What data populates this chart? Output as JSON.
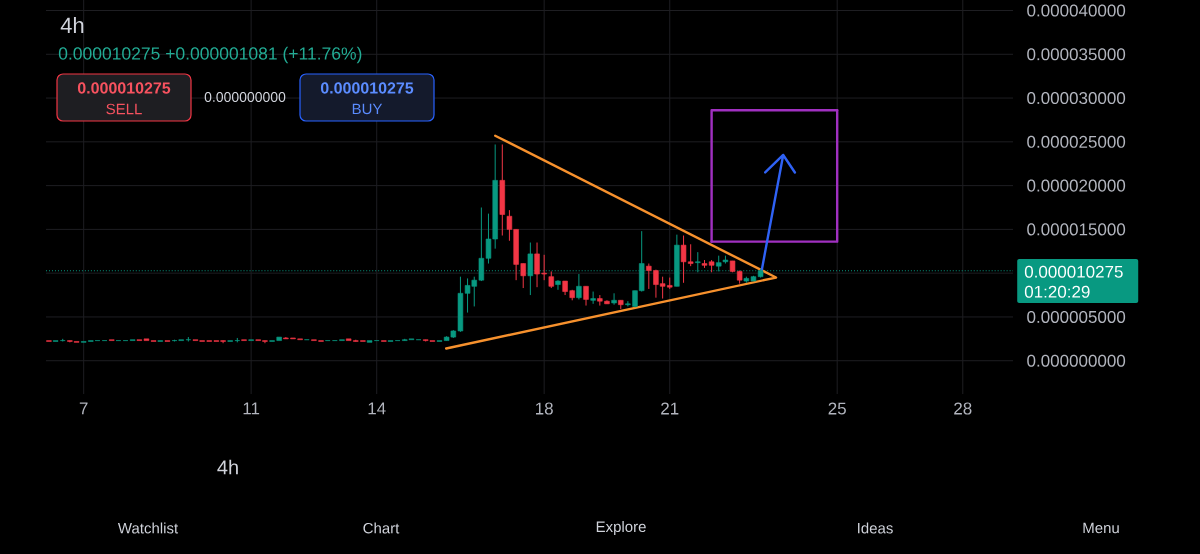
{
  "chart_data": {
    "type": "candlestick",
    "title": "4h",
    "subtitle": "0.000010275 +0.000001081 (+11.76%)",
    "x": [
      6.17,
      6.33,
      6.5,
      6.67,
      6.83,
      7,
      7.17,
      7.33,
      7.5,
      7.67,
      7.83,
      8,
      8.17,
      8.33,
      8.5,
      8.67,
      8.83,
      9,
      9.17,
      9.33,
      9.5,
      9.67,
      9.83,
      10,
      10.17,
      10.33,
      10.5,
      10.67,
      10.83,
      11,
      11.17,
      11.33,
      11.5,
      11.67,
      11.83,
      12,
      12.17,
      12.33,
      12.5,
      12.67,
      12.83,
      13,
      13.17,
      13.33,
      13.5,
      13.67,
      13.83,
      14,
      14.17,
      14.33,
      14.5,
      14.67,
      14.83,
      15,
      15.17,
      15.33,
      15.5,
      15.67,
      15.83,
      16,
      16.17,
      16.33,
      16.5,
      16.67,
      16.83,
      17,
      17.17,
      17.33,
      17.5,
      17.67,
      17.83,
      18,
      18.17,
      18.33,
      18.5,
      18.67,
      18.83,
      19,
      19.17,
      19.33,
      19.5,
      19.67,
      19.83,
      20,
      20.17,
      20.33,
      20.5,
      20.67,
      20.83,
      21,
      21.17,
      21.33,
      21.5,
      21.67,
      21.83,
      22,
      22.17,
      22.33,
      22.5,
      22.67,
      22.83,
      23,
      23.17
    ],
    "ohlc": [
      [
        2.3e-06,
        2.3e-06,
        2.2e-06,
        2.2e-06
      ],
      [
        2.2e-06,
        2.3e-06,
        2.2e-06,
        2.3e-06
      ],
      [
        2.3e-06,
        2.5e-06,
        2.2e-06,
        2.3e-06
      ],
      [
        2.3e-06,
        2.3e-06,
        2.1e-06,
        2.2e-06
      ],
      [
        2.2e-06,
        2.2e-06,
        2.1e-06,
        2.1e-06
      ],
      [
        2.1e-06,
        2.2e-06,
        2.1e-06,
        2.2e-06
      ],
      [
        2.2e-06,
        2.3e-06,
        2.2e-06,
        2.3e-06
      ],
      [
        2.3e-06,
        2.3e-06,
        2.3e-06,
        2.3e-06
      ],
      [
        2.3e-06,
        2.3e-06,
        2.3e-06,
        2.3e-06
      ],
      [
        2.4e-06,
        2.4e-06,
        2.3e-06,
        2.3e-06
      ],
      [
        2.3e-06,
        2.3e-06,
        2.3e-06,
        2.3e-06
      ],
      [
        2.3e-06,
        2.3e-06,
        2.3e-06,
        2.3e-06
      ],
      [
        2.3e-06,
        2.4e-06,
        2.3e-06,
        2.4e-06
      ],
      [
        2.4e-06,
        2.4e-06,
        2.3e-06,
        2.3e-06
      ],
      [
        2.5e-06,
        2.5e-06,
        2.3e-06,
        2.3e-06
      ],
      [
        2.3e-06,
        2.3e-06,
        2.2e-06,
        2.2e-06
      ],
      [
        2.2e-06,
        2.3e-06,
        2.2e-06,
        2.3e-06
      ],
      [
        2.3e-06,
        2.3e-06,
        2.2e-06,
        2.2e-06
      ],
      [
        2.3e-06,
        2.4e-06,
        2.2e-06,
        2.3e-06
      ],
      [
        2.3e-06,
        2.4e-06,
        2.3e-06,
        2.4e-06
      ],
      [
        2.4e-06,
        2.7e-06,
        2.2e-06,
        2.4e-06
      ],
      [
        2.4e-06,
        2.4e-06,
        2.3e-06,
        2.3e-06
      ],
      [
        2.3e-06,
        2.3e-06,
        2.2e-06,
        2.2e-06
      ],
      [
        2.3e-06,
        2.3e-06,
        2.2e-06,
        2.2e-06
      ],
      [
        2.3e-06,
        2.3e-06,
        2.2e-06,
        2.2e-06
      ],
      [
        2.3e-06,
        2.3e-06,
        2e-06,
        2.2e-06
      ],
      [
        2.2e-06,
        2.3e-06,
        2.2e-06,
        2.3e-06
      ],
      [
        2.3e-06,
        2.6e-06,
        2.1e-06,
        2.3e-06
      ],
      [
        2.4e-06,
        2.4e-06,
        2.3e-06,
        2.3e-06
      ],
      [
        2.3e-06,
        2.4e-06,
        2.3e-06,
        2.4e-06
      ],
      [
        2.4e-06,
        2.4e-06,
        2.3e-06,
        2.3e-06
      ],
      [
        2.3e-06,
        2.3e-06,
        2e-06,
        2.2e-06
      ],
      [
        2.2e-06,
        2.3e-06,
        2.2e-06,
        2.3e-06
      ],
      [
        2.3e-06,
        2.7e-06,
        2.3e-06,
        2.7e-06
      ],
      [
        2.6e-06,
        2.7e-06,
        2.5e-06,
        2.5e-06
      ],
      [
        2.6e-06,
        2.6e-06,
        2.5e-06,
        2.5e-06
      ],
      [
        2.5e-06,
        2.5e-06,
        2.4e-06,
        2.4e-06
      ],
      [
        2.4e-06,
        2.4e-06,
        2.4e-06,
        2.4e-06
      ],
      [
        2.4e-06,
        2.4e-06,
        2.3e-06,
        2.3e-06
      ],
      [
        2.3e-06,
        2.3e-06,
        2.2e-06,
        2.2e-06
      ],
      [
        2.3e-06,
        2.3e-06,
        2.3e-06,
        2.3e-06
      ],
      [
        2.3e-06,
        2.3e-06,
        2.3e-06,
        2.3e-06
      ],
      [
        2.3e-06,
        2.4e-06,
        2.3e-06,
        2.4e-06
      ],
      [
        2.5e-06,
        2.5e-06,
        2.3e-06,
        2.3e-06
      ],
      [
        2.3e-06,
        2.4e-06,
        2.2e-06,
        2.2e-06
      ],
      [
        2.3e-06,
        2.3e-06,
        2.2e-06,
        2.2e-06
      ],
      [
        2.1e-06,
        2.3e-06,
        2.1e-06,
        2.3e-06
      ],
      [
        2.3e-06,
        2.3e-06,
        2.3e-06,
        2.3e-06
      ],
      [
        2.3e-06,
        2.3e-06,
        2.2e-06,
        2.2e-06
      ],
      [
        2.2e-06,
        2.3e-06,
        2.2e-06,
        2.3e-06
      ],
      [
        2.3e-06,
        2.3e-06,
        2.3e-06,
        2.3e-06
      ],
      [
        2.3e-06,
        2.5e-06,
        2.3e-06,
        2.4e-06
      ],
      [
        2.4e-06,
        2.5e-06,
        2.4e-06,
        2.5e-06
      ],
      [
        2.4e-06,
        2.4e-06,
        2.4e-06,
        2.4e-06
      ],
      [
        2.4e-06,
        2.4e-06,
        2.2e-06,
        2.3e-06
      ],
      [
        2.3e-06,
        2.3e-06,
        2.2e-06,
        2.2e-06
      ],
      [
        2.2e-06,
        2.3e-06,
        2.2e-06,
        2.3e-06
      ],
      [
        2.3e-06,
        2.8e-06,
        2.3e-06,
        2.7e-06
      ],
      [
        2.7e-06,
        3.5e-06,
        2.6e-06,
        3.4e-06
      ],
      [
        3.4e-06,
        9.6e-06,
        3.3e-06,
        7.7e-06
      ],
      [
        7.7e-06,
        9.4e-06,
        5.5e-06,
        8.6e-06
      ],
      [
        8.5e-06,
        9.6e-06,
        6.2e-06,
        9.2e-06
      ],
      [
        9.2e-06,
        1.75e-05,
        9.1e-06,
        1.17e-05
      ],
      [
        1.17e-05,
        1.68e-05,
        1.11e-05,
        1.39e-05
      ],
      [
        1.39e-05,
        2.47e-05,
        1.28e-05,
        2.06e-05
      ],
      [
        2.06e-05,
        2.47e-05,
        1.43e-05,
        1.67e-05
      ],
      [
        1.65e-05,
        1.72e-05,
        1.37e-05,
        1.5e-05
      ],
      [
        1.5e-05,
        1.5e-05,
        9.2e-06,
        1.1e-05
      ],
      [
        1.11e-05,
        1.11e-05,
        8.3e-06,
        9.7e-06
      ],
      [
        9.7e-06,
        1.35e-05,
        7.5e-06,
        1.22e-05
      ],
      [
        1.22e-05,
        1.35e-05,
        8.4e-06,
        9.9e-06
      ],
      [
        1e-05,
        1.21e-05,
        9.2e-06,
        9.9e-06
      ],
      [
        9.6e-06,
        1.02e-05,
        8.3e-06,
        8.5e-06
      ],
      [
        8.7e-06,
        9.2e-06,
        8.1e-06,
        9.1e-06
      ],
      [
        9.1e-06,
        9.1e-06,
        7.5e-06,
        7.9e-06
      ],
      [
        8e-06,
        8.1e-06,
        6.9e-06,
        7.2e-06
      ],
      [
        7.2e-06,
        9.9e-06,
        7e-06,
        8.5e-06
      ],
      [
        8.5e-06,
        8.5e-06,
        6.3e-06,
        7e-06
      ],
      [
        6.9e-06,
        7.9e-06,
        6.5e-06,
        7.1e-06
      ],
      [
        7.1e-06,
        7.5e-06,
        6.3e-06,
        6.8e-06
      ],
      [
        6.8e-06,
        6.9e-06,
        6.5e-06,
        6.5e-06
      ],
      [
        6.6e-06,
        7.7e-06,
        6.4e-06,
        6.9e-06
      ],
      [
        6.9e-06,
        6.9e-06,
        5.9e-06,
        6.4e-06
      ],
      [
        6.4e-06,
        6.8e-06,
        6.2e-06,
        6.5e-06
      ],
      [
        6.2e-06,
        8e-06,
        6.1e-06,
        8e-06
      ],
      [
        8e-06,
        1.48e-05,
        7.9e-06,
        1.11e-05
      ],
      [
        1.08e-05,
        1.11e-05,
        8.2e-06,
        1.03e-05
      ],
      [
        1.03e-05,
        1.04e-05,
        7.2e-06,
        8.7e-06
      ],
      [
        8.8e-06,
        9.6e-06,
        7.1e-06,
        8.5e-06
      ],
      [
        8.6e-06,
        9.5e-06,
        8.2e-06,
        8.4e-06
      ],
      [
        8.5e-06,
        1.44e-05,
        8.5e-06,
        1.32e-05
      ],
      [
        1.32e-05,
        1.43e-05,
        8.9e-06,
        1.13e-05
      ],
      [
        1.13e-05,
        1.33e-05,
        1.08e-05,
        1.11e-05
      ],
      [
        1.12e-05,
        1.24e-05,
        1.01e-05,
        1.13e-05
      ],
      [
        1.11e-05,
        1.15e-05,
        1.06e-05,
        1.09e-05
      ],
      [
        1.13e-05,
        1.15e-05,
        1.01e-05,
        1.09e-05
      ],
      [
        1.08e-05,
        1.2e-05,
        1.02e-05,
        1.12e-05
      ],
      [
        1.13e-05,
        1.2e-05,
        1.11e-05,
        1.15e-05
      ],
      [
        1.14e-05,
        1.14e-05,
        1.01e-05,
        1.02e-05
      ],
      [
        1.02e-05,
        1.03e-05,
        8.8e-06,
        9.2e-06
      ],
      [
        9.1e-06,
        9.6e-06,
        8.9e-06,
        9.4e-06
      ],
      [
        9.1e-06,
        9.7e-06,
        9.1e-06,
        9.6e-06
      ],
      [
        9.6e-06,
        1.05e-05,
        9.5e-06,
        1.0275e-05
      ]
    ],
    "colors": [
      "#f23645",
      "#089981",
      "#089981",
      "#f23645",
      "#f23645",
      "#089981",
      "#089981",
      "#089981",
      "#089981",
      "#f23645",
      "#089981",
      "#089981",
      "#089981",
      "#f23645",
      "#f23645",
      "#f23645",
      "#089981",
      "#f23645",
      "#089981",
      "#089981",
      "#089981",
      "#f23645",
      "#f23645",
      "#f23645",
      "#f23645",
      "#f23645",
      "#089981",
      "#089981",
      "#f23645",
      "#089981",
      "#f23645",
      "#f23645",
      "#089981",
      "#089981",
      "#f23645",
      "#f23645",
      "#f23645",
      "#089981",
      "#f23645",
      "#f23645",
      "#089981",
      "#089981",
      "#089981",
      "#f23645",
      "#f23645",
      "#f23645",
      "#089981",
      "#089981",
      "#f23645",
      "#089981",
      "#089981",
      "#089981",
      "#089981",
      "#089981",
      "#f23645",
      "#f23645",
      "#089981",
      "#089981",
      "#089981",
      "#089981",
      "#089981",
      "#089981",
      "#089981",
      "#089981",
      "#089981",
      "#f23645",
      "#f23645",
      "#f23645",
      "#f23645",
      "#089981",
      "#f23645",
      "#f23645",
      "#f23645",
      "#089981",
      "#f23645",
      "#f23645",
      "#089981",
      "#f23645",
      "#089981",
      "#f23645",
      "#f23645",
      "#089981",
      "#f23645",
      "#089981",
      "#089981",
      "#089981",
      "#f23645",
      "#f23645",
      "#f23645",
      "#f23645",
      "#089981",
      "#f23645",
      "#f23645",
      "#089981",
      "#f23645",
      "#f23645",
      "#089981",
      "#089981",
      "#f23645",
      "#f23645",
      "#089981",
      "#089981",
      "#089981"
    ],
    "series": [
      {
        "type": "line",
        "color": "#f7912d",
        "x": [
          16.83,
          23.54,
          15.66
        ],
        "values": [
          2.57e-05,
          9.5e-06,
          1.4e-06
        ]
      },
      {
        "type": "line",
        "color": "#a030c0",
        "x": [
          22,
          22,
          25
        ],
        "values": [
          1.36e-05,
          2.86e-05,
          2.86e-05
        ]
      },
      {
        "type": "line",
        "color": "#a030c0",
        "x": [
          25,
          25,
          22
        ],
        "values": [
          2.86e-05,
          1.36e-05,
          1.36e-05
        ]
      },
      {
        "type": "line",
        "color": "#2f62f5",
        "x": [
          23.2,
          23.71,
          23.28,
          23.71,
          23.99
        ],
        "values": [
          1.04e-05,
          2.35e-05,
          2.15e-05,
          2.35e-05,
          2.15e-05
        ]
      }
    ],
    "xlim": [
      6.1,
      29.2
    ],
    "xticks": [
      7,
      11,
      14,
      18,
      21,
      25,
      28
    ],
    "ylim": [
      -3.8e-06,
      4.12e-05
    ],
    "yticks": [
      {
        "value": 0,
        "label": "0.000000000"
      },
      {
        "value": 5e-06,
        "label": "0.000005000"
      },
      {
        "value": 1e-05,
        "label": null
      },
      {
        "value": 1.5e-05,
        "label": "0.000015000"
      },
      {
        "value": 2e-05,
        "label": "0.000020000"
      },
      {
        "value": 2.5e-05,
        "label": "0.000025000"
      },
      {
        "value": 3e-05,
        "label": "0.000030000"
      },
      {
        "value": 3.5e-05,
        "label": "0.000035000"
      },
      {
        "value": 4e-05,
        "label": "0.000040000"
      }
    ],
    "grid": true,
    "ref_lines": [
      {
        "axis": "y",
        "value": 1.0275e-05,
        "label": "0.000010275",
        "color": "#089981",
        "line_style": "dotted"
      }
    ],
    "annotations": [
      "0.000010275",
      "SELL",
      "0.000000000",
      "0.000010275",
      "BUY",
      "01:20:29",
      "4h",
      "Watchlist",
      "Chart",
      "Explore",
      "Ideas",
      "Menu"
    ]
  }
}
